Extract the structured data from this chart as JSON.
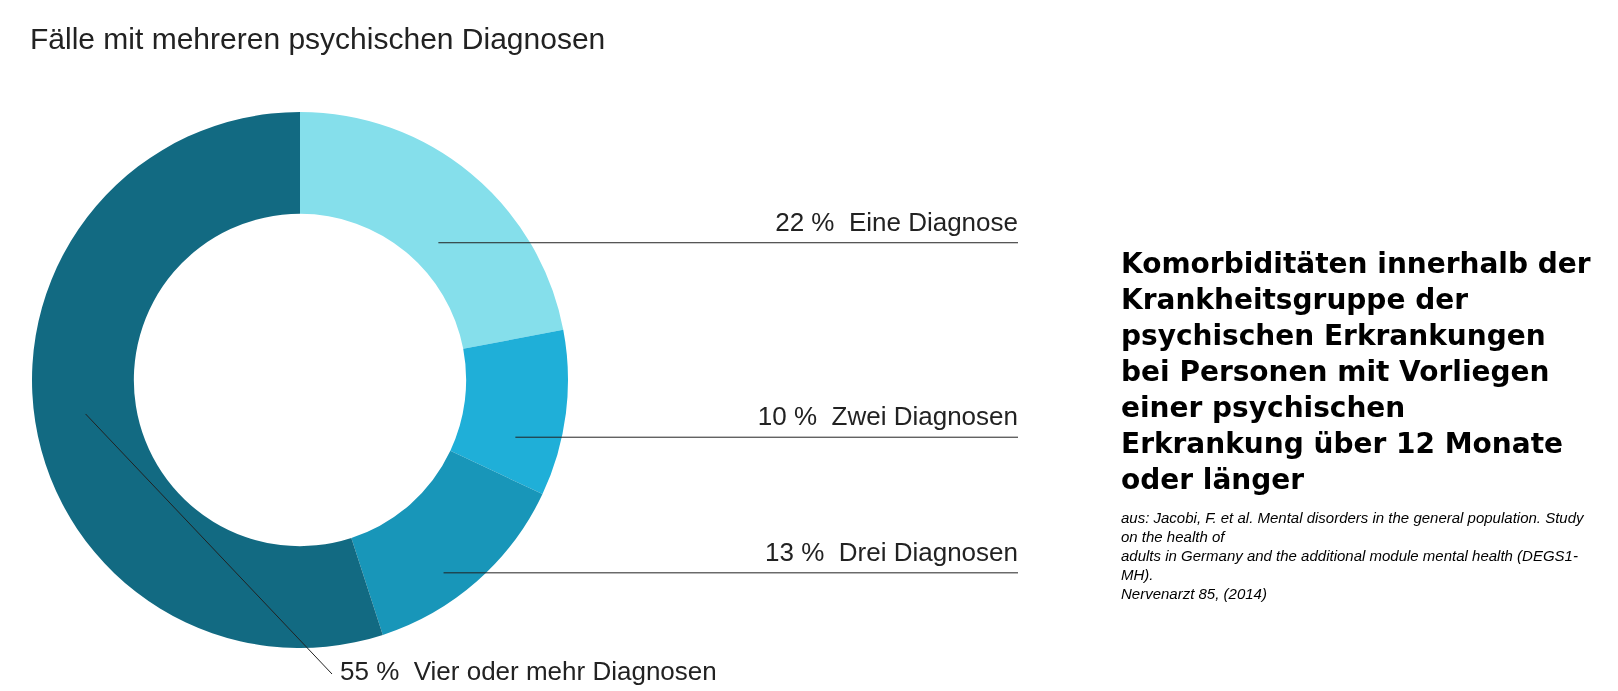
{
  "chart_data": {
    "type": "donut",
    "title": "Fälle mit mehreren psychischen Diagnosen",
    "subtitle": "Komorbiditäten innerhalb der Krankheitsgruppe der psychischen Erkrankungen bei Personen mit Vorliegen einer psychischen Erkrankung über 12 Monate oder länger",
    "categories": [
      "Eine Diagnose",
      "Zwei Diagnosen",
      "Drei Diagnosen",
      "Vier oder mehr Diagnosen"
    ],
    "values": [
      22,
      10,
      13,
      55
    ],
    "value_labels": [
      "22 %",
      "10 %",
      "13 %",
      "55 %"
    ],
    "colors": [
      "#85dfeb",
      "#1fafd8",
      "#1896b9",
      "#126a82"
    ],
    "legend": false,
    "annotations": [
      "aus: Jacobi, F. et al. Mental disorders in the general population. Study on the health of\nadults in Germany and the additional module mental health (DEGS1-MH).\nNervenarzt 85, (2014)"
    ]
  }
}
